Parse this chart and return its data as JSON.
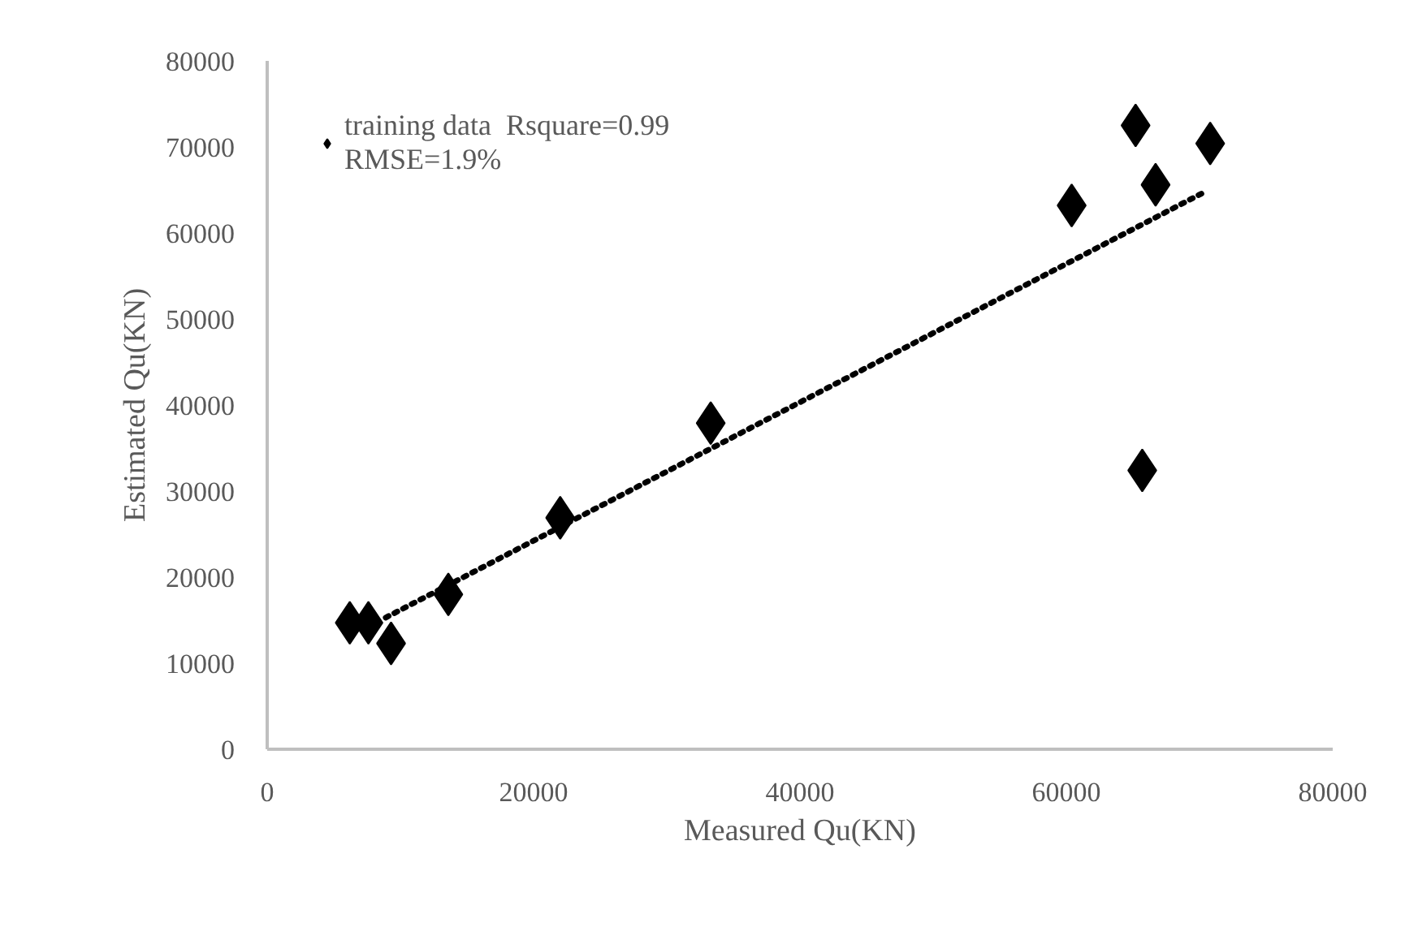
{
  "chart_data": {
    "type": "scatter",
    "xlabel": "Measured Qu(KN)",
    "ylabel": "Estimated Qu(KN)",
    "xlim": [
      0,
      80000
    ],
    "ylim": [
      0,
      80000
    ],
    "xticks": [
      0,
      20000,
      40000,
      60000,
      80000
    ],
    "yticks": [
      0,
      10000,
      20000,
      30000,
      40000,
      50000,
      60000,
      70000,
      80000
    ],
    "grid": false,
    "legend": "top left",
    "series": [
      {
        "name": "training data  Rsquare=0.99\nRMSE=1.9%",
        "color": "#000000",
        "marker": "diamond",
        "x": [
          6200,
          7600,
          9300,
          13600,
          22000,
          33300,
          60400,
          65200,
          66700,
          70800,
          65700
        ],
        "values": [
          14700,
          14700,
          12300,
          18000,
          26900,
          37900,
          63200,
          72500,
          65600,
          70400,
          32400
        ]
      },
      {
        "type": "line",
        "color": "#000000",
        "line_style": "dotted",
        "x": [
          8900,
          70300
        ],
        "values": [
          15300,
          64700
        ]
      }
    ]
  }
}
